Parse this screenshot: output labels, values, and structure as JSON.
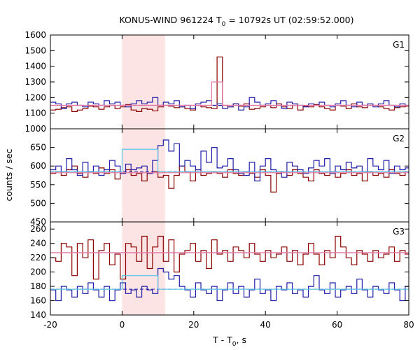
{
  "colors": {
    "red": "#8b0000",
    "blue": "#1f1fa8",
    "pink": "#e27aa5",
    "cyan": "#5bc8e6",
    "shade": "#fde4e4"
  },
  "chart_data": {
    "type": "line",
    "title": {
      "prefix": "KONUS-WIND 961224 T",
      "sub": "0",
      "suffix": " = 10792s UT (02:59:52.000)"
    },
    "xlabel": {
      "prefix": "T - T",
      "sub": "0",
      "suffix": ", s"
    },
    "ylabel": "counts / sec",
    "xlim": [
      -20,
      80
    ],
    "x_ticks": [
      -20,
      0,
      20,
      40,
      60,
      80
    ],
    "highlight_interval": [
      0,
      12
    ],
    "bin_width": 1.5,
    "bin_start": -20,
    "panels": [
      {
        "label": "G1",
        "ylim": [
          1000,
          1600
        ],
        "y_ticks": [
          1000,
          1100,
          1200,
          1300,
          1400,
          1500,
          1600
        ],
        "background_red": 1150,
        "background_blue": 1150,
        "model_pink": {
          "base": 1150,
          "x": [
            25,
            28
          ],
          "level": 1300
        },
        "series": [
          {
            "color": "red",
            "values": [
              1120,
              1125,
              1135,
              1140,
              1110,
              1120,
              1130,
              1145,
              1140,
              1125,
              1140,
              1150,
              1130,
              1140,
              1155,
              1120,
              1110,
              1130,
              1125,
              1115,
              1140,
              1150,
              1145,
              1135,
              1140,
              1130,
              1120,
              1150,
              1140,
              1135,
              1130,
              1460,
              1150,
              1140,
              1160,
              1145,
              1160,
              1125,
              1130,
              1140,
              1150,
              1135,
              1160,
              1140,
              1130,
              1150,
              1120,
              1145,
              1140,
              1155,
              1140,
              1130,
              1120,
              1150,
              1145,
              1130,
              1160,
              1140,
              1135,
              1150,
              1150,
              1140,
              1130,
              1120,
              1135,
              1140,
              1145,
              1140
            ]
          },
          {
            "color": "blue",
            "values": [
              1170,
              1160,
              1130,
              1160,
              1170,
              1150,
              1140,
              1170,
              1160,
              1150,
              1180,
              1160,
              1170,
              1150,
              1140,
              1160,
              1180,
              1160,
              1170,
              1200,
              1150,
              1170,
              1160,
              1180,
              1140,
              1150,
              1130,
              1160,
              1170,
              1180,
              1150,
              1160,
              1130,
              1140,
              1160,
              1120,
              1140,
              1200,
              1170,
              1150,
              1160,
              1180,
              1150,
              1130,
              1170,
              1160,
              1150,
              1140,
              1160,
              1150,
              1170,
              1150,
              1140,
              1160,
              1180,
              1150,
              1140,
              1170,
              1150,
              1160,
              1140,
              1160,
              1180,
              1150,
              1140,
              1160,
              1150,
              1170
            ]
          }
        ]
      },
      {
        "label": "G2",
        "ylim": [
          450,
          700
        ],
        "y_ticks": [
          450,
          500,
          550,
          600,
          650
        ],
        "background_red": 582,
        "background_blue": 585,
        "model_cyan": {
          "base": 585,
          "x": [
            0,
            10
          ],
          "level": 645
        },
        "series": [
          {
            "color": "red",
            "values": [
              580,
              585,
              575,
              590,
              600,
              580,
              570,
              585,
              580,
              595,
              580,
              590,
              565,
              580,
              590,
              575,
              580,
              560,
              580,
              585,
              570,
              575,
              540,
              575,
              600,
              585,
              560,
              590,
              575,
              580,
              585,
              580,
              570,
              590,
              580,
              575,
              585,
              580,
              570,
              590,
              575,
              530,
              580,
              585,
              575,
              590,
              580,
              570,
              560,
              590,
              580,
              575,
              585,
              570,
              580,
              590,
              575,
              580,
              560,
              585,
              575,
              580,
              570,
              590,
              580,
              575,
              585,
              570
            ]
          },
          {
            "color": "blue",
            "values": [
              590,
              600,
              585,
              620,
              590,
              575,
              610,
              585,
              600,
              575,
              590,
              615,
              600,
              580,
              605,
              590,
              595,
              600,
              580,
              615,
              655,
              670,
              640,
              660,
              600,
              615,
              600,
              590,
              640,
              610,
              650,
              595,
              600,
              620,
              590,
              580,
              575,
              610,
              560,
              600,
              620,
              590,
              585,
              570,
              610,
              600,
              590,
              580,
              595,
              615,
              600,
              620,
              580,
              600,
              590,
              610,
              595,
              600,
              585,
              620,
              600,
              590,
              615,
              580,
              600,
              590,
              595,
              605
            ]
          }
        ]
      },
      {
        "label": "G3",
        "ylim": [
          140,
          270
        ],
        "y_ticks": [
          140,
          160,
          180,
          200,
          220,
          240,
          260
        ],
        "background_red": 227,
        "background_blue": 176,
        "model_pink": {
          "base": 227,
          "x": [
            0,
            12
          ],
          "level": 227
        },
        "model_cyan": {
          "base": 176,
          "x": [
            0,
            10
          ],
          "level": 195
        },
        "series": [
          {
            "color": "red",
            "values": [
              220,
              215,
              240,
              235,
              195,
              240,
              220,
              245,
              190,
              230,
              240,
              210,
              225,
              190,
              240,
              235,
              215,
              250,
              205,
              235,
              250,
              215,
              245,
              200,
              225,
              230,
              240,
              215,
              230,
              205,
              245,
              225,
              230,
              215,
              235,
              230,
              220,
              240,
              225,
              215,
              230,
              220,
              225,
              235,
              215,
              230,
              210,
              225,
              240,
              225,
              210,
              230,
              220,
              250,
              235,
              220,
              210,
              230,
              225,
              215,
              230,
              220,
              225,
              235,
              215,
              230,
              225,
              220
            ]
          },
          {
            "color": "blue",
            "values": [
              175,
              160,
              180,
              175,
              165,
              180,
              170,
              185,
              175,
              165,
              180,
              160,
              175,
              185,
              170,
              175,
              165,
              180,
              175,
              170,
              205,
              200,
              190,
              195,
              180,
              175,
              165,
              185,
              175,
              170,
              180,
              160,
              175,
              185,
              170,
              180,
              165,
              175,
              190,
              170,
              175,
              160,
              180,
              175,
              185,
              170,
              175,
              165,
              180,
              195,
              175,
              170,
              185,
              165,
              175,
              180,
              170,
              190,
              175,
              165,
              180,
              175,
              170,
              185,
              175,
              160,
              180,
              175
            ]
          }
        ]
      }
    ]
  }
}
